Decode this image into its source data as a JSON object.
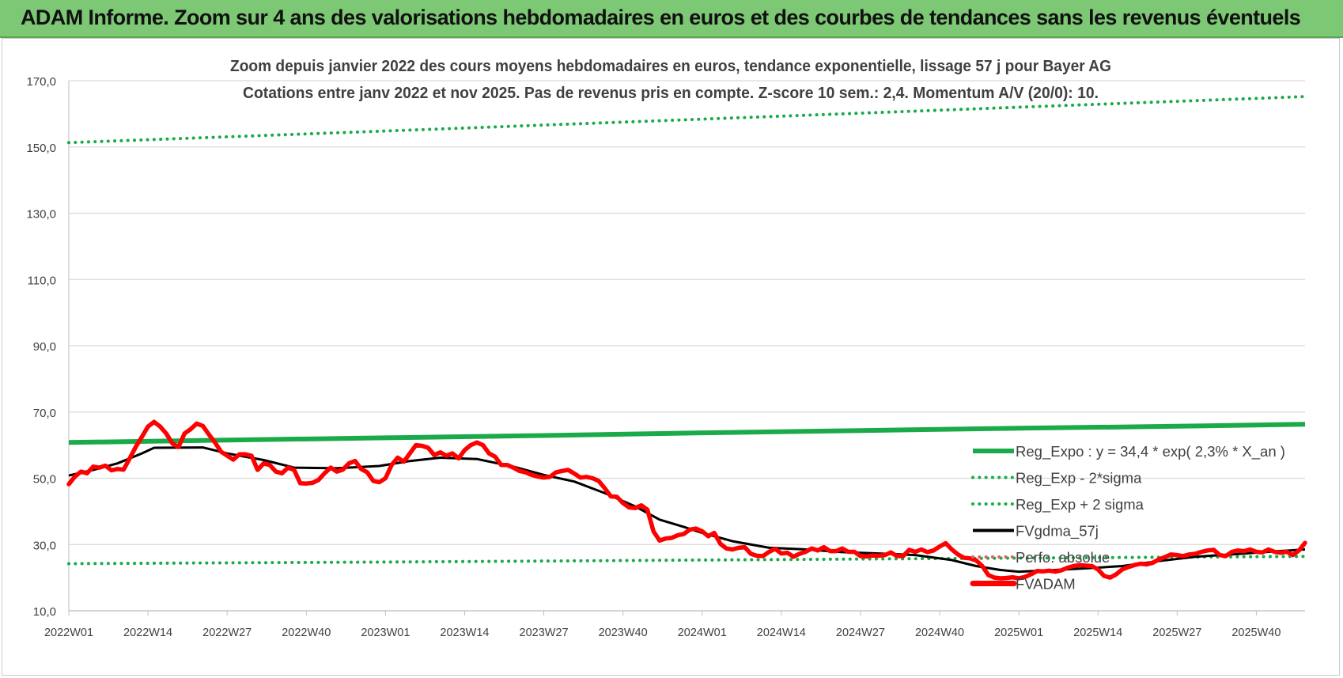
{
  "header": {
    "title": "ADAM Informe. Zoom sur 4 ans des valorisations hebdomadaires en euros et des courbes de tendances sans les revenus éventuels"
  },
  "colors": {
    "banner": "#7dc874",
    "reg_expo": "#1aaa4a",
    "sigma_bands": "#1aaa4a",
    "fvgdma": "#000000",
    "fvadam": "#ff0000",
    "perfo": "#e06060",
    "grid": "#d9d9d9",
    "axis_text": "#404040",
    "title_text": "#404040"
  },
  "chart_data": {
    "type": "line",
    "title": "Zoom depuis janvier 2022 des cours moyens hebdomadaires en euros, tendance exponentielle, lissage 57 j pour Bayer AG",
    "subtitle": "Cotations entre janv 2022 et nov 2025. Pas de revenus pris en compte. Z-score 10 sem.: 2,4. Momentum A/V (20/0): 10.",
    "x_unit": "week",
    "x_ticks": [
      "2022W01",
      "2022W14",
      "2022W27",
      "2022W40",
      "2023W01",
      "2023W14",
      "2023W27",
      "2023W40",
      "2024W01",
      "2024W14",
      "2024W27",
      "2024W40",
      "2025W01",
      "2025W14",
      "2025W27",
      "2025W40"
    ],
    "x_range": [
      "2022W01",
      "2025W48"
    ],
    "y_ticks": [
      "10,0",
      "30,0",
      "50,0",
      "70,0",
      "90,0",
      "110,0",
      "130,0",
      "150,0",
      "170,0"
    ],
    "ylim": [
      10,
      170
    ],
    "grid": true,
    "legend_position": "right, lower-middle",
    "series": [
      {
        "name": "Reg_Expo : y = 34,4 * exp( 2,3% *  X_an )",
        "style": "solid-thick",
        "color": "#1aaa4a",
        "points": [
          [
            "2022W01",
            60.8
          ],
          [
            "2022W27",
            61.5
          ],
          [
            "2023W01",
            62.2
          ],
          [
            "2023W27",
            62.9
          ],
          [
            "2024W01",
            63.7
          ],
          [
            "2024W27",
            64.4
          ],
          [
            "2025W01",
            65.1
          ],
          [
            "2025W27",
            65.7
          ],
          [
            "2025W48",
            66.3
          ]
        ]
      },
      {
        "name": "Reg_Exp - 2*sigma",
        "style": "dotted",
        "color": "#1aaa4a",
        "points": [
          [
            "2022W01",
            24.2
          ],
          [
            "2023W01",
            24.7
          ],
          [
            "2024W01",
            25.3
          ],
          [
            "2025W01",
            25.9
          ],
          [
            "2025W48",
            26.4
          ]
        ]
      },
      {
        "name": "Reg_Exp + 2 sigma",
        "style": "dotted",
        "color": "#1aaa4a",
        "points": [
          [
            "2022W01",
            151.3
          ],
          [
            "2023W01",
            154.8
          ],
          [
            "2024W01",
            158.4
          ],
          [
            "2025W01",
            162.0
          ],
          [
            "2025W48",
            165.2
          ]
        ]
      },
      {
        "name": "FVgdma_57j",
        "style": "solid",
        "color": "#000000",
        "points": [
          [
            "2022W01",
            50.8
          ],
          [
            "2022W05",
            52.5
          ],
          [
            "2022W09",
            54.5
          ],
          [
            "2022W13",
            57.5
          ],
          [
            "2022W15",
            59.2
          ],
          [
            "2022W23",
            59.3
          ],
          [
            "2022W27",
            57.5
          ],
          [
            "2022W33",
            55.5
          ],
          [
            "2022W38",
            53.2
          ],
          [
            "2022W45",
            53.0
          ],
          [
            "2022W52",
            53.7
          ],
          [
            "2023W05",
            55.2
          ],
          [
            "2023W10",
            56.2
          ],
          [
            "2023W16",
            55.8
          ],
          [
            "2023W22",
            53.5
          ],
          [
            "2023W27",
            51.0
          ],
          [
            "2023W32",
            49.0
          ],
          [
            "2023W37",
            45.5
          ],
          [
            "2023W42",
            41.5
          ],
          [
            "2023W46",
            37.5
          ],
          [
            "2023W50",
            35.3
          ],
          [
            "2024W01",
            33.5
          ],
          [
            "2024W06",
            31.0
          ],
          [
            "2024W12",
            29.0
          ],
          [
            "2024W18",
            28.5
          ],
          [
            "2024W24",
            27.7
          ],
          [
            "2024W30",
            27.3
          ],
          [
            "2024W36",
            26.8
          ],
          [
            "2024W42",
            25.3
          ],
          [
            "2024W46",
            23.5
          ],
          [
            "2024W50",
            22.3
          ],
          [
            "2025W01",
            21.8
          ],
          [
            "2025W06",
            22.2
          ],
          [
            "2025W12",
            22.8
          ],
          [
            "2025W18",
            23.5
          ],
          [
            "2025W24",
            25.0
          ],
          [
            "2025W30",
            26.3
          ],
          [
            "2025W36",
            27.0
          ],
          [
            "2025W42",
            27.8
          ],
          [
            "2025W48",
            28.5
          ]
        ]
      },
      {
        "name": "Perfo. absolue",
        "style": "dotted",
        "color": "#e06060",
        "points": []
      },
      {
        "name": "FVADAM",
        "style": "solid-thick",
        "color": "#ff0000",
        "points": [
          [
            "2022W01",
            48.2
          ],
          [
            "2022W02",
            50.5
          ],
          [
            "2022W03",
            52.0
          ],
          [
            "2022W04",
            51.5
          ],
          [
            "2022W05",
            53.5
          ],
          [
            "2022W06",
            53.2
          ],
          [
            "2022W07",
            53.8
          ],
          [
            "2022W08",
            52.4
          ],
          [
            "2022W09",
            52.8
          ],
          [
            "2022W10",
            52.6
          ],
          [
            "2022W11",
            56.0
          ],
          [
            "2022W12",
            59.5
          ],
          [
            "2022W13",
            62.5
          ],
          [
            "2022W14",
            65.6
          ],
          [
            "2022W15",
            67.0
          ],
          [
            "2022W16",
            65.6
          ],
          [
            "2022W17",
            63.5
          ],
          [
            "2022W18",
            60.5
          ],
          [
            "2022W19",
            59.4
          ],
          [
            "2022W20",
            63.5
          ],
          [
            "2022W21",
            64.8
          ],
          [
            "2022W22",
            66.5
          ],
          [
            "2022W23",
            65.8
          ],
          [
            "2022W24",
            63.2
          ],
          [
            "2022W25",
            60.8
          ],
          [
            "2022W26",
            58.0
          ],
          [
            "2022W27",
            56.8
          ],
          [
            "2022W28",
            55.6
          ],
          [
            "2022W29",
            57.2
          ],
          [
            "2022W30",
            57.2
          ],
          [
            "2022W31",
            56.8
          ],
          [
            "2022W32",
            52.5
          ],
          [
            "2022W33",
            54.5
          ],
          [
            "2022W34",
            54.0
          ],
          [
            "2022W35",
            52.0
          ],
          [
            "2022W36",
            51.5
          ],
          [
            "2022W37",
            53.2
          ],
          [
            "2022W38",
            52.5
          ],
          [
            "2022W39",
            48.5
          ],
          [
            "2022W40",
            48.4
          ],
          [
            "2022W41",
            48.6
          ],
          [
            "2022W42",
            49.5
          ],
          [
            "2022W43",
            51.5
          ],
          [
            "2022W44",
            53.2
          ],
          [
            "2022W45",
            52.0
          ],
          [
            "2022W46",
            52.6
          ],
          [
            "2022W47",
            54.5
          ],
          [
            "2022W48",
            55.2
          ],
          [
            "2022W49",
            52.8
          ],
          [
            "2022W50",
            51.8
          ],
          [
            "2022W51",
            49.2
          ],
          [
            "2022W52",
            48.8
          ],
          [
            "2023W01",
            50.0
          ],
          [
            "2023W02",
            54.0
          ],
          [
            "2023W03",
            56.2
          ],
          [
            "2023W04",
            55.0
          ],
          [
            "2023W05",
            57.5
          ],
          [
            "2023W06",
            60.0
          ],
          [
            "2023W07",
            59.8
          ],
          [
            "2023W08",
            59.2
          ],
          [
            "2023W09",
            57.0
          ],
          [
            "2023W10",
            57.8
          ],
          [
            "2023W11",
            56.8
          ],
          [
            "2023W12",
            57.5
          ],
          [
            "2023W13",
            56.0
          ],
          [
            "2023W14",
            58.5
          ],
          [
            "2023W15",
            60.0
          ],
          [
            "2023W16",
            60.8
          ],
          [
            "2023W17",
            60.0
          ],
          [
            "2023W18",
            57.5
          ],
          [
            "2023W19",
            56.5
          ],
          [
            "2023W20",
            54.0
          ],
          [
            "2023W21",
            54.0
          ],
          [
            "2023W22",
            53.2
          ],
          [
            "2023W23",
            52.2
          ],
          [
            "2023W24",
            51.8
          ],
          [
            "2023W25",
            51.0
          ],
          [
            "2023W26",
            50.5
          ],
          [
            "2023W27",
            50.2
          ],
          [
            "2023W28",
            50.4
          ],
          [
            "2023W29",
            51.8
          ],
          [
            "2023W30",
            52.2
          ],
          [
            "2023W31",
            52.5
          ],
          [
            "2023W32",
            51.4
          ],
          [
            "2023W33",
            50.2
          ],
          [
            "2023W34",
            50.4
          ],
          [
            "2023W35",
            50.0
          ],
          [
            "2023W36",
            49.2
          ],
          [
            "2023W37",
            47.0
          ],
          [
            "2023W38",
            44.5
          ],
          [
            "2023W39",
            44.4
          ],
          [
            "2023W40",
            42.5
          ],
          [
            "2023W41",
            41.2
          ],
          [
            "2023W42",
            41.0
          ],
          [
            "2023W43",
            41.8
          ],
          [
            "2023W44",
            40.5
          ],
          [
            "2023W45",
            34.0
          ],
          [
            "2023W46",
            31.2
          ],
          [
            "2023W47",
            31.8
          ],
          [
            "2023W48",
            32.0
          ],
          [
            "2023W49",
            32.8
          ],
          [
            "2023W50",
            33.2
          ],
          [
            "2023W51",
            34.5
          ],
          [
            "2023W52",
            34.8
          ],
          [
            "2024W01",
            34.0
          ],
          [
            "2024W02",
            32.5
          ],
          [
            "2024W03",
            33.5
          ],
          [
            "2024W04",
            30.2
          ],
          [
            "2024W05",
            28.8
          ],
          [
            "2024W06",
            28.5
          ],
          [
            "2024W07",
            29.0
          ],
          [
            "2024W08",
            29.2
          ],
          [
            "2024W09",
            27.2
          ],
          [
            "2024W10",
            26.6
          ],
          [
            "2024W11",
            26.5
          ],
          [
            "2024W12",
            27.8
          ],
          [
            "2024W13",
            28.7
          ],
          [
            "2024W14",
            27.3
          ],
          [
            "2024W15",
            27.5
          ],
          [
            "2024W16",
            26.3
          ],
          [
            "2024W17",
            27.2
          ],
          [
            "2024W18",
            27.8
          ],
          [
            "2024W19",
            28.8
          ],
          [
            "2024W20",
            28.2
          ],
          [
            "2024W21",
            29.2
          ],
          [
            "2024W22",
            28.0
          ],
          [
            "2024W23",
            28.0
          ],
          [
            "2024W24",
            28.8
          ],
          [
            "2024W25",
            27.8
          ],
          [
            "2024W26",
            27.8
          ],
          [
            "2024W27",
            26.5
          ],
          [
            "2024W28",
            26.4
          ],
          [
            "2024W29",
            26.7
          ],
          [
            "2024W30",
            26.6
          ],
          [
            "2024W31",
            26.8
          ],
          [
            "2024W32",
            27.6
          ],
          [
            "2024W33",
            26.5
          ],
          [
            "2024W34",
            26.5
          ],
          [
            "2024W35",
            28.4
          ],
          [
            "2024W36",
            27.8
          ],
          [
            "2024W37",
            28.5
          ],
          [
            "2024W38",
            27.7
          ],
          [
            "2024W39",
            28.2
          ],
          [
            "2024W40",
            29.4
          ],
          [
            "2024W41",
            30.4
          ],
          [
            "2024W42",
            28.5
          ],
          [
            "2024W43",
            27.0
          ],
          [
            "2024W44",
            26.0
          ],
          [
            "2024W45",
            25.8
          ],
          [
            "2024W46",
            25.2
          ],
          [
            "2024W47",
            23.5
          ],
          [
            "2024W48",
            20.8
          ],
          [
            "2024W49",
            20.0
          ],
          [
            "2024W50",
            19.8
          ],
          [
            "2024W51",
            19.9
          ],
          [
            "2024W52",
            20.1
          ],
          [
            "2025W01",
            19.8
          ],
          [
            "2025W02",
            20.2
          ],
          [
            "2025W03",
            21.0
          ],
          [
            "2025W04",
            22.0
          ],
          [
            "2025W05",
            21.9
          ],
          [
            "2025W06",
            22.1
          ],
          [
            "2025W07",
            21.8
          ],
          [
            "2025W08",
            22.2
          ],
          [
            "2025W09",
            23.0
          ],
          [
            "2025W10",
            23.5
          ],
          [
            "2025W11",
            23.8
          ],
          [
            "2025W12",
            23.6
          ],
          [
            "2025W13",
            23.5
          ],
          [
            "2025W14",
            22.5
          ],
          [
            "2025W15",
            20.5
          ],
          [
            "2025W16",
            20.0
          ],
          [
            "2025W17",
            21.0
          ],
          [
            "2025W18",
            22.5
          ],
          [
            "2025W19",
            23.2
          ],
          [
            "2025W20",
            23.8
          ],
          [
            "2025W21",
            24.2
          ],
          [
            "2025W22",
            24.0
          ],
          [
            "2025W23",
            24.5
          ],
          [
            "2025W24",
            25.5
          ],
          [
            "2025W25",
            26.2
          ],
          [
            "2025W26",
            27.0
          ],
          [
            "2025W27",
            26.8
          ],
          [
            "2025W28",
            26.5
          ],
          [
            "2025W29",
            27.0
          ],
          [
            "2025W30",
            27.2
          ],
          [
            "2025W31",
            27.8
          ],
          [
            "2025W32",
            28.2
          ],
          [
            "2025W33",
            28.4
          ],
          [
            "2025W34",
            26.8
          ],
          [
            "2025W35",
            26.5
          ],
          [
            "2025W36",
            27.8
          ],
          [
            "2025W37",
            28.2
          ],
          [
            "2025W38",
            28.0
          ],
          [
            "2025W39",
            28.5
          ],
          [
            "2025W40",
            27.8
          ],
          [
            "2025W41",
            27.6
          ],
          [
            "2025W42",
            28.5
          ],
          [
            "2025W43",
            27.8
          ],
          [
            "2025W44",
            27.5
          ],
          [
            "2025W45",
            27.8
          ],
          [
            "2025W46",
            26.8
          ],
          [
            "2025W47",
            28.2
          ],
          [
            "2025W48",
            30.5
          ]
        ]
      }
    ]
  }
}
